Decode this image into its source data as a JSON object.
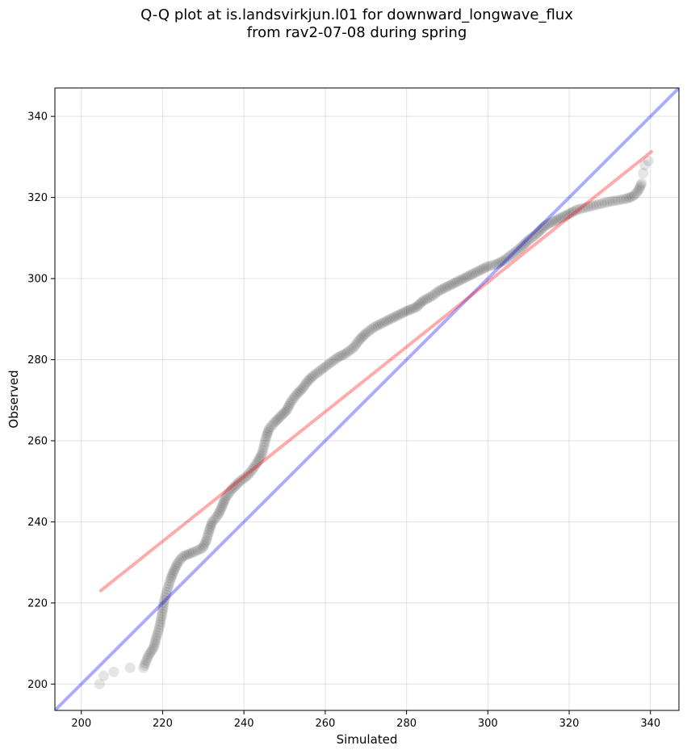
{
  "chart_data": {
    "type": "scatter",
    "title": "Q-Q plot at is.landsvirkjun.l01 for downward_longwave_flux",
    "subtitle": "from rav2-07-08 during spring",
    "xlabel": "Simulated",
    "ylabel": "Observed",
    "xlim": [
      193.5,
      347
    ],
    "ylim": [
      193.5,
      347
    ],
    "x_ticks": [
      200,
      220,
      240,
      260,
      280,
      300,
      320,
      340
    ],
    "y_ticks": [
      200,
      220,
      240,
      260,
      280,
      300,
      320,
      340
    ],
    "grid": true,
    "point_color": "#000000",
    "identity_line": {
      "color": "#0000ff",
      "x": [
        193.5,
        347
      ],
      "y": [
        193.5,
        347
      ]
    },
    "fit_line": {
      "color": "#ff0000",
      "x": [
        204.5,
        340.5
      ],
      "y": [
        222.8,
        331.5
      ]
    },
    "quantile_curve": [
      [
        204.5,
        200
      ],
      [
        205.5,
        202
      ],
      [
        208,
        203
      ],
      [
        212,
        204
      ],
      [
        215.3,
        204
      ],
      [
        216.5,
        207
      ],
      [
        217.8,
        209
      ],
      [
        218.6,
        212
      ],
      [
        219.2,
        214
      ],
      [
        219.6,
        216
      ],
      [
        220,
        218
      ],
      [
        220.3,
        220
      ],
      [
        220.8,
        222
      ],
      [
        221.4,
        224
      ],
      [
        222,
        226
      ],
      [
        222.8,
        228
      ],
      [
        223.8,
        230
      ],
      [
        225,
        231.5
      ],
      [
        227.5,
        232.5
      ],
      [
        229.8,
        233.5
      ],
      [
        230.8,
        235.5
      ],
      [
        231.5,
        238
      ],
      [
        232.2,
        240
      ],
      [
        233.5,
        241.5
      ],
      [
        234.5,
        243.5
      ],
      [
        235.5,
        246
      ],
      [
        237,
        248
      ],
      [
        239,
        250
      ],
      [
        241,
        251.5
      ],
      [
        242.5,
        253.5
      ],
      [
        243.5,
        255
      ],
      [
        244.5,
        257
      ],
      [
        245,
        259
      ],
      [
        245.5,
        261
      ],
      [
        246.2,
        263
      ],
      [
        247.5,
        264.5
      ],
      [
        249,
        266
      ],
      [
        250.5,
        267.5
      ],
      [
        251.5,
        269.5
      ],
      [
        253,
        271.5
      ],
      [
        254.5,
        273
      ],
      [
        255.5,
        274.5
      ],
      [
        257,
        276
      ],
      [
        259,
        277.5
      ],
      [
        261,
        279
      ],
      [
        263,
        280.5
      ],
      [
        265,
        281.5
      ],
      [
        267,
        283
      ],
      [
        268.5,
        285
      ],
      [
        270,
        286.5
      ],
      [
        272,
        288
      ],
      [
        274,
        289
      ],
      [
        276,
        290
      ],
      [
        278,
        291
      ],
      [
        280,
        292
      ],
      [
        282.5,
        293
      ],
      [
        284,
        294.5
      ],
      [
        286,
        295.5
      ],
      [
        288,
        297
      ],
      [
        290,
        298
      ],
      [
        292,
        299
      ],
      [
        294,
        300
      ],
      [
        296,
        301
      ],
      [
        298,
        302
      ],
      [
        300,
        303
      ],
      [
        302,
        303.5
      ],
      [
        304,
        304.5
      ],
      [
        306,
        306
      ],
      [
        308,
        307.5
      ],
      [
        310,
        309.5
      ],
      [
        312,
        311
      ],
      [
        314,
        313
      ],
      [
        316,
        314
      ],
      [
        318,
        315
      ],
      [
        320,
        316
      ],
      [
        322,
        317
      ],
      [
        324,
        317.5
      ],
      [
        326,
        318
      ],
      [
        328,
        318.5
      ],
      [
        330,
        319
      ],
      [
        332,
        319.3
      ],
      [
        334,
        319.7
      ],
      [
        335.5,
        320.2
      ],
      [
        336.5,
        321
      ],
      [
        337.2,
        322
      ],
      [
        337.8,
        323.5
      ],
      [
        338.2,
        326
      ],
      [
        338.6,
        328
      ],
      [
        339.5,
        329
      ]
    ]
  }
}
